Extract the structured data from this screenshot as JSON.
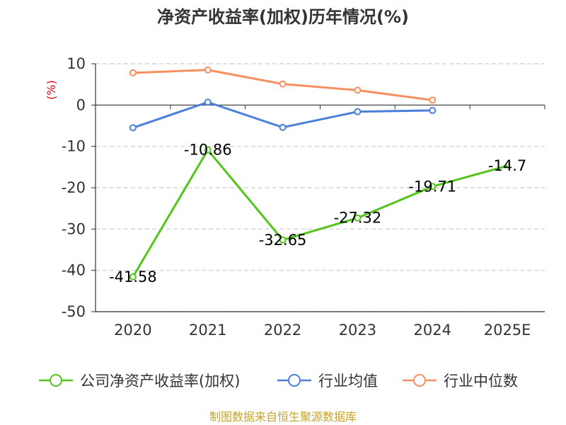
{
  "chart_data": {
    "type": "line",
    "title": "净资产收益率(加权)历年情况(%)",
    "ylabel": "(%)",
    "categories": [
      "2020",
      "2021",
      "2022",
      "2023",
      "2024",
      "2025E"
    ],
    "ylim": [
      -50,
      10
    ],
    "yticks": [
      10,
      0,
      -10,
      -20,
      -30,
      -40,
      -50
    ],
    "grid": true,
    "legend_position": "bottom",
    "series": [
      {
        "name": "公司净资产收益率(加权)",
        "color": "#52c41a",
        "values": [
          -41.58,
          -10.86,
          -32.65,
          -27.32,
          -19.71,
          -14.7
        ],
        "labels": [
          "-41.58",
          "-10.86",
          "-32.65",
          "-27.32",
          "-19.71",
          "-14.7"
        ],
        "markers": [
          true,
          true,
          true,
          true,
          true,
          false
        ]
      },
      {
        "name": "行业均值",
        "color": "#4a7fdb",
        "values": [
          -5.5,
          0.7,
          -5.4,
          -1.6,
          -1.3,
          null
        ]
      },
      {
        "name": "行业中位数",
        "color": "#f79060",
        "values": [
          7.8,
          8.5,
          5.1,
          3.6,
          1.2,
          null
        ]
      }
    ],
    "source": "制图数据来自恒生聚源数据库"
  }
}
